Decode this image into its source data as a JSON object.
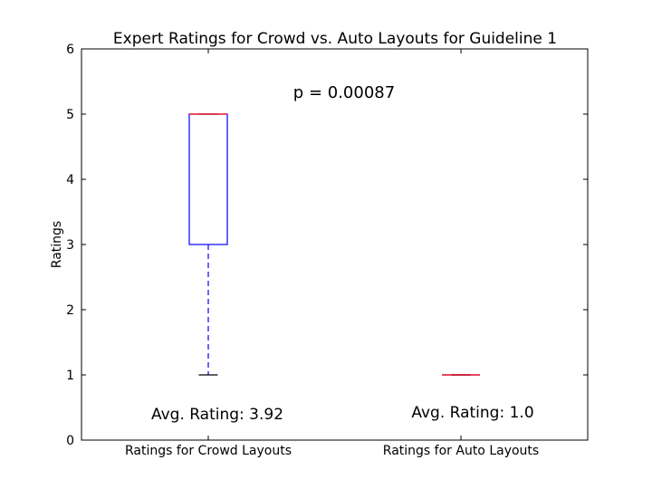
{
  "chart_data": {
    "type": "box",
    "title": "Expert Ratings for Crowd vs. Auto Layouts for Guideline 1",
    "xlabel": "",
    "ylabel": "Ratings",
    "ylim": [
      0,
      6
    ],
    "yticks": [
      "0",
      "1",
      "2",
      "3",
      "4",
      "5",
      "6"
    ],
    "grid": false,
    "categories": [
      "Ratings for Crowd Layouts",
      "Ratings for Auto Layouts"
    ],
    "boxes": [
      {
        "whisker_low": 1,
        "q1": 3,
        "median": 5,
        "q3": 5,
        "whisker_high": 5
      },
      {
        "whisker_low": 1,
        "q1": 1,
        "median": 1,
        "q3": 1,
        "whisker_high": 1
      }
    ],
    "annotations": {
      "p_value": "p = 0.00087",
      "avg_labels": [
        "Avg. Rating: 3.92",
        "Avg. Rating: 1.0"
      ]
    },
    "colors": {
      "box": "#0000ff",
      "median": "#ff0000",
      "whisker_cap": "#000000"
    }
  }
}
